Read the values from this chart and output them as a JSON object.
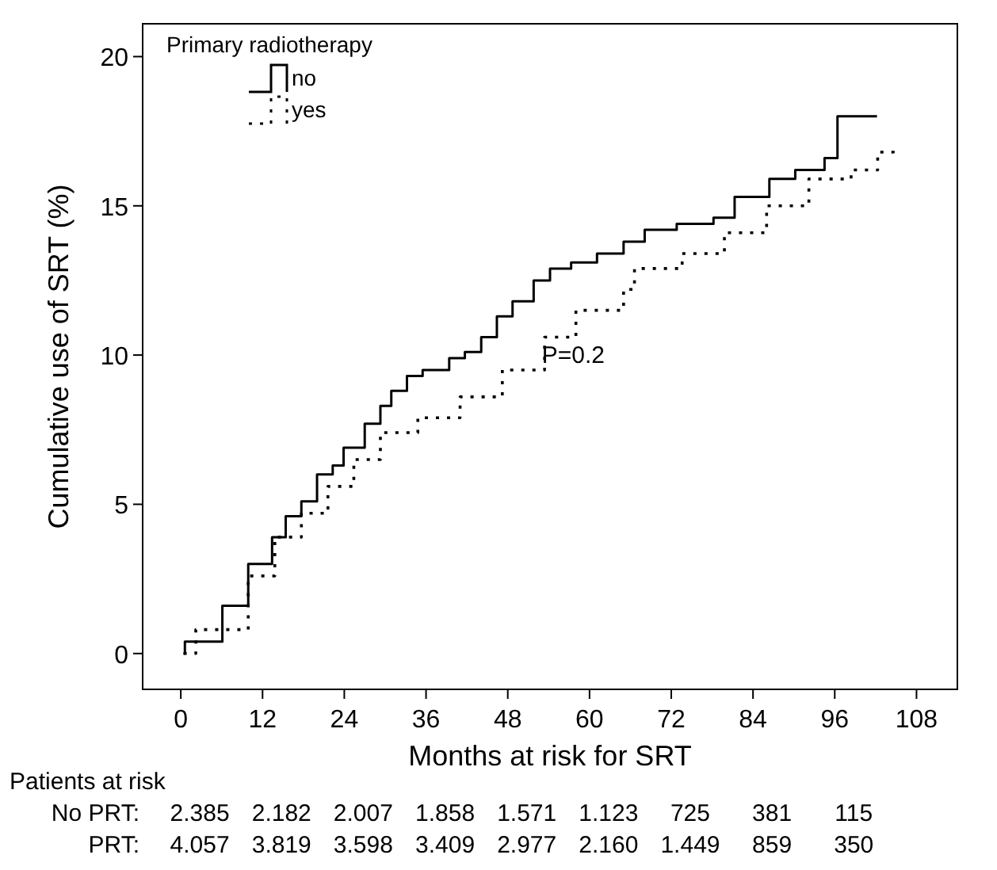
{
  "chart_data": {
    "type": "step",
    "xlabel": "Months at risk for SRT",
    "ylabel": "Cumulative use of SRT (%)",
    "legend_title": "Primary radiotherapy",
    "legend": "top left",
    "xlim": [
      -5.6,
      114
    ],
    "ylim": [
      -1.2,
      21.1
    ],
    "xticks": [
      0,
      12,
      24,
      36,
      48,
      60,
      72,
      84,
      96,
      108
    ],
    "yticks": [
      0,
      5,
      10,
      15,
      20
    ],
    "series": [
      {
        "name": "no",
        "color": "#000000",
        "line_style": "solid",
        "x": [
          0.4,
          0.6,
          6.1,
          9.9,
          13.4,
          15.4,
          17.7,
          20,
          22.3,
          23.9,
          27,
          29.3,
          30.9,
          33.2,
          35.5,
          39.4,
          41.7,
          44.1,
          46.4,
          48.7,
          51.8,
          54.2,
          57.3,
          61.1,
          65,
          68.1,
          72.8,
          78.2,
          81.3,
          86.4,
          90.2,
          94.5,
          96.4,
          102.2
        ],
        "values": [
          0,
          0.4,
          1.6,
          3.0,
          3.9,
          4.6,
          5.1,
          6.0,
          6.3,
          6.9,
          7.7,
          8.3,
          8.8,
          9.3,
          9.5,
          9.9,
          10.1,
          10.6,
          11.3,
          11.8,
          12.5,
          12.9,
          13.1,
          13.4,
          13.8,
          14.2,
          14.4,
          14.6,
          15.3,
          15.9,
          16.2,
          16.6,
          18.0,
          18.0
        ]
      },
      {
        "name": "yes",
        "color": "#000000",
        "line_style": "dotted",
        "x": [
          0.4,
          2.2,
          9.9,
          13.8,
          17.7,
          21.6,
          25.4,
          29.3,
          34.8,
          41,
          47.2,
          53.4,
          58,
          65,
          66.6,
          73.6,
          79.8,
          86,
          92.2,
          98.4,
          102.3,
          104.6
        ],
        "values": [
          0,
          0.8,
          2.6,
          3.9,
          4.7,
          5.6,
          6.5,
          7.4,
          7.9,
          8.6,
          9.5,
          10.6,
          11.5,
          12.2,
          12.9,
          13.4,
          14.1,
          15.0,
          15.9,
          16.2,
          16.8,
          17.0
        ]
      }
    ],
    "annotations": [
      "P=0.2",
      "Patients at risk",
      "No PRT: 2.385 2.182 2.007 1.858 1.571 1.123 725 381 115",
      "PRT: 4.057 3.819 3.598 3.409 2.977 2.160 1.449 859 350"
    ]
  }
}
